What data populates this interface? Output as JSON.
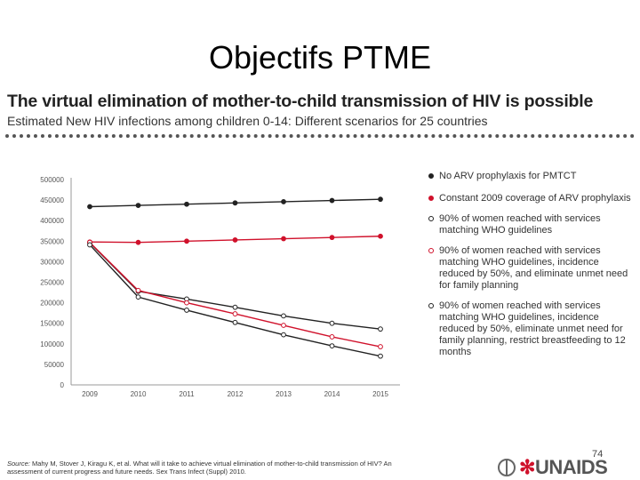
{
  "slide": {
    "title": "Objectifs PTME",
    "page_number": "74"
  },
  "figure": {
    "title": "The virtual elimination of mother-to-child transmission of HIV is possible",
    "subtitle": "Estimated New HIV infections among children 0-14: Different scenarios for 25 countries"
  },
  "source": {
    "label": "Source:",
    "text": "Mahy M, Stover J, Kiragu K, et al. What will it take to achieve virtual elimination of mother-to-child transmission of HIV? An assessment of current progress and future needs. Sex Trans Infect (Suppl) 2010."
  },
  "logo": {
    "text_a": "UNAIDS",
    "colors": {
      "ribbon": "#d0112b",
      "text": "#555555"
    }
  },
  "chart_data": {
    "type": "line",
    "title": "The virtual elimination of mother-to-child transmission of HIV is possible",
    "subtitle": "Estimated New HIV infections among children 0-14: Different scenarios for 25 countries",
    "xlabel": "",
    "ylabel": "",
    "x": [
      "2009",
      "2010",
      "2011",
      "2012",
      "2013",
      "2014",
      "2015"
    ],
    "ylim": [
      0,
      500000
    ],
    "yticks": [
      0,
      50000,
      100000,
      150000,
      200000,
      250000,
      300000,
      350000,
      400000,
      450000,
      500000
    ],
    "ytick_labels": [
      "0",
      "50000",
      "100000",
      "150000",
      "200000",
      "250000",
      "300000",
      "350000",
      "400000",
      "450000",
      "500000"
    ],
    "grid": false,
    "legend_position": "right",
    "series": [
      {
        "name": "No ARV prophylaxis for PMTCT",
        "color": "#222222",
        "marker": "filled",
        "values": [
          434000,
          437000,
          440000,
          443000,
          446000,
          449000,
          452000
        ]
      },
      {
        "name": "Constant 2009 coverage of ARV prophylaxis",
        "color": "#d0112b",
        "marker": "filled",
        "values": [
          348000,
          347000,
          350000,
          353000,
          356000,
          359000,
          362000
        ]
      },
      {
        "name": "90% of women reached with services matching WHO guidelines",
        "color": "#222222",
        "marker": "open",
        "values": [
          346000,
          228000,
          209000,
          189000,
          168000,
          150000,
          136000
        ]
      },
      {
        "name": "90% of women reached with services matching WHO guidelines, incidence reduced by 50%, and eliminate unmet need for family planning",
        "color": "#d0112b",
        "marker": "open",
        "values": [
          347000,
          230000,
          200000,
          173000,
          145000,
          117000,
          93000
        ]
      },
      {
        "name": "90% of women reached with services matching WHO guidelines, incidence reduced by 50%, eliminate unmet need for family planning, restrict breastfeeding to 12 months",
        "color": "#222222",
        "marker": "open",
        "values": [
          341000,
          214000,
          182000,
          152000,
          122000,
          95000,
          70000
        ]
      }
    ]
  }
}
